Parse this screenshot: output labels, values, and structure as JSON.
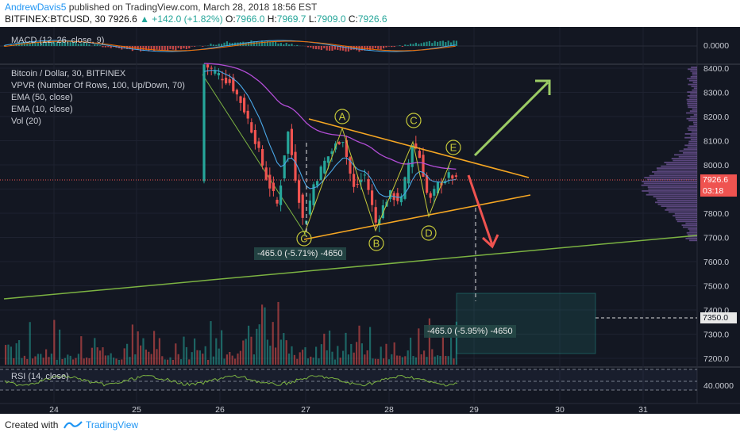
{
  "header": {
    "author": "AndrewDavis5",
    "published": "published on TradingView.com, March 28, 2018 18:56 EST",
    "symbol": "BITFINEX:BTCUSD, 30",
    "last": "7926.6",
    "change": "▲ +142.0 (+1.82%)",
    "o_label": "O:",
    "o_val": "7966.0",
    "h_label": "H:",
    "h_val": "7969.7",
    "l_label": "L:",
    "l_val": "7909.0",
    "c_label": "C:",
    "c_val": "7926.6"
  },
  "macd": {
    "label": "MACD (12, 26, close, 9)",
    "axis": "0.0000"
  },
  "main_legend": {
    "title": "Bitcoin / Dollar, 30, BITFINEX",
    "vpvr": "VPVR (Number Of Rows, 100, Up/Down, 70)",
    "ema50": "EMA (50, close)",
    "ema10": "EMA (10, close)",
    "vol": "Vol (20)"
  },
  "rsi": {
    "label": "RSI (14, close)",
    "axis": "40.0000"
  },
  "price_axis": [
    "8400.0",
    "8300.0",
    "8200.0",
    "8100.0",
    "8000.0",
    "7900.0",
    "7800.0",
    "7700.0",
    "7600.0",
    "7500.0",
    "7400.0",
    "7300.0",
    "7200.0"
  ],
  "price_tags": {
    "current": "7926.6",
    "countdown": "03:18",
    "target": "7350.0"
  },
  "time_axis": [
    "24",
    "25",
    "26",
    "27",
    "28",
    "29",
    "30",
    "31"
  ],
  "wave_labels": [
    "A",
    "B",
    "C",
    "D",
    "E",
    "C"
  ],
  "annotations": {
    "measure_left": "-465.0 (-5.71%) -4650",
    "measure_right": "-465.0 (-5.95%) -4650"
  },
  "colors": {
    "up": "#26a69a",
    "down": "#ef5350",
    "bg": "#131722",
    "triangle": "#f5a623",
    "trendline": "#7cb342",
    "wave": "#c6c93a",
    "arrow_up": "#9ccc65",
    "arrow_down": "#ef5350"
  },
  "footer": {
    "created": "Created with",
    "brand": "TradingView"
  }
}
